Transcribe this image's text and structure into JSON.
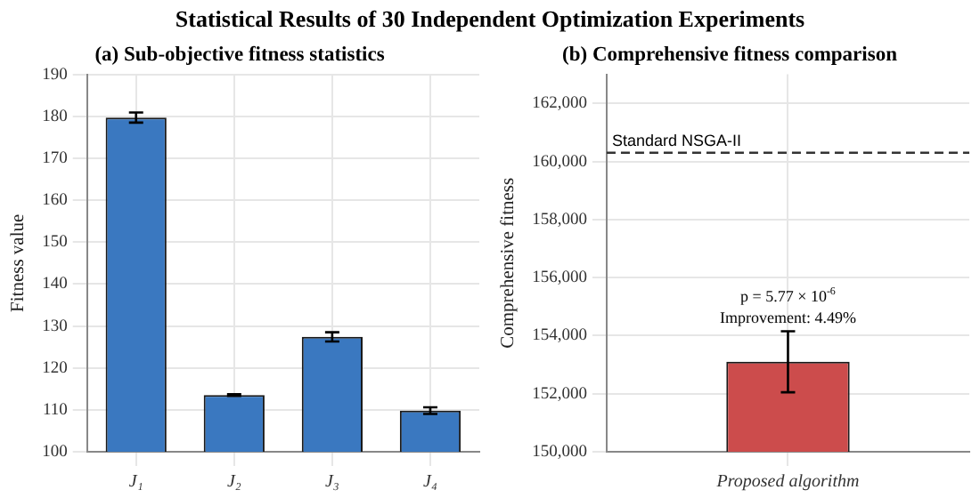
{
  "chart_data": [
    {
      "type": "bar",
      "title": "(a) Sub-objective fitness statistics",
      "ylabel": "Fitness value",
      "categories": [
        "J₁",
        "J₂",
        "J₃",
        "J₄"
      ],
      "values": [
        179.7,
        113.5,
        127.4,
        109.8
      ],
      "errors": [
        1.2,
        0.2,
        1.1,
        0.8
      ],
      "color": "#3a78c0",
      "ylim": [
        100,
        190
      ],
      "yticks": [
        100,
        110,
        120,
        130,
        140,
        150,
        160,
        170,
        180,
        190
      ],
      "grid": true,
      "annotations": [
        "Statistical Results of 30 Independent Optimization Experiments"
      ]
    },
    {
      "type": "bar",
      "title": "(b) Comprehensive fitness comparison",
      "ylabel": "Comprehensive fitness",
      "categories": [
        "Proposed algorithm"
      ],
      "values": [
        153100
      ],
      "errors": [
        1050
      ],
      "color": "#cc4c4c",
      "ylim": [
        150000,
        163000
      ],
      "yticks": [
        {
          "value": 150000,
          "label": "150,000"
        },
        {
          "value": 152000,
          "label": "152,000"
        },
        {
          "value": 154000,
          "label": "154,000"
        },
        {
          "value": 156000,
          "label": "156,000"
        },
        {
          "value": 158000,
          "label": "158,000"
        },
        {
          "value": 160000,
          "label": "160,000"
        },
        {
          "value": 162000,
          "label": "162,000"
        }
      ],
      "grid": true,
      "ref_lines": [
        {
          "axis": "y",
          "value": 160300,
          "label": "Standard NSGA-II",
          "line_style": "dashed",
          "color": "#333333"
        }
      ],
      "annotations": [
        {
          "text": "p = 5.77 × 10$^{-6}$",
          "x": "Proposed algorithm",
          "y": 154150
        },
        {
          "text": "Improvement: 4.49%",
          "x": "Proposed algorithm",
          "y": 154150
        }
      ]
    }
  ]
}
